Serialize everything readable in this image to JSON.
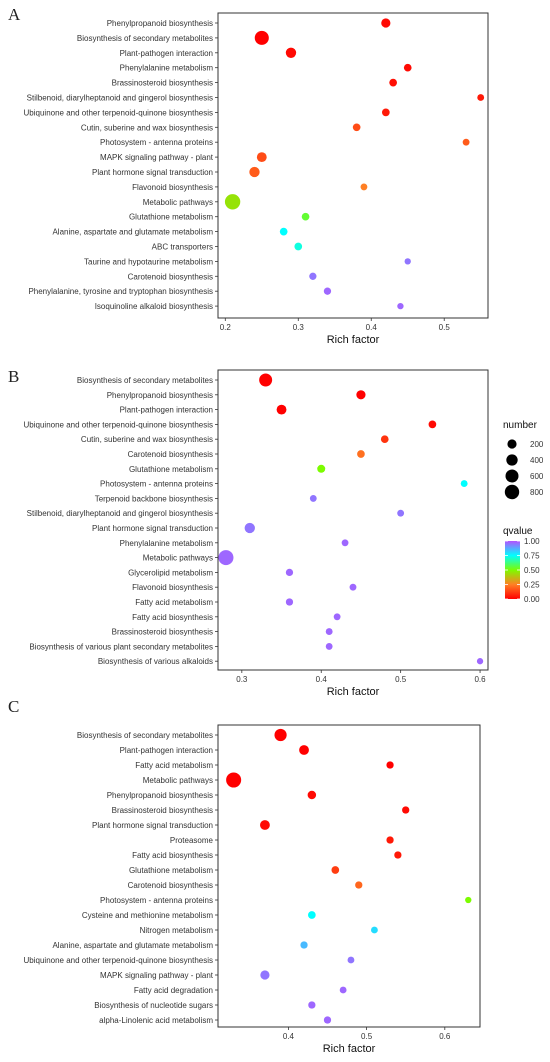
{
  "chart_data": [
    {
      "type": "scatter",
      "panel": "A",
      "xlabel": "Rich factor",
      "xlim": [
        0.19,
        0.56
      ],
      "xticks": [
        0.2,
        0.3,
        0.4,
        0.5
      ],
      "points": [
        {
          "category": "Phenylpropanoid biosynthesis",
          "x": 0.42,
          "number": 200,
          "qvalue": 0.02
        },
        {
          "category": "Biosynthesis of secondary metabolites",
          "x": 0.25,
          "number": 750,
          "qvalue": 0.0
        },
        {
          "category": "Plant-pathogen interaction",
          "x": 0.29,
          "number": 300,
          "qvalue": 0.02
        },
        {
          "category": "Phenylalanine metabolism",
          "x": 0.45,
          "number": 100,
          "qvalue": 0.02
        },
        {
          "category": "Brassinosteroid biosynthesis",
          "x": 0.43,
          "number": 100,
          "qvalue": 0.03
        },
        {
          "category": "Stilbenoid, diarylheptanoid and gingerol biosynthesis",
          "x": 0.55,
          "number": 60,
          "qvalue": 0.05
        },
        {
          "category": "Ubiquinone and other terpenoid-quinone biosynthesis",
          "x": 0.42,
          "number": 100,
          "qvalue": 0.05
        },
        {
          "category": "Cutin, suberine and wax biosynthesis",
          "x": 0.38,
          "number": 100,
          "qvalue": 0.15
        },
        {
          "category": "Photosystem - antenna proteins",
          "x": 0.53,
          "number": 60,
          "qvalue": 0.18
        },
        {
          "category": "MAPK signaling pathway - plant",
          "x": 0.25,
          "number": 250,
          "qvalue": 0.15
        },
        {
          "category": "Plant hormone signal transduction",
          "x": 0.24,
          "number": 300,
          "qvalue": 0.18
        },
        {
          "category": "Flavonoid biosynthesis",
          "x": 0.39,
          "number": 60,
          "qvalue": 0.25
        },
        {
          "category": "Metabolic pathways",
          "x": 0.21,
          "number": 950,
          "qvalue": 0.45
        },
        {
          "category": "Glutathione metabolism",
          "x": 0.31,
          "number": 100,
          "qvalue": 0.55
        },
        {
          "category": "Alanine, aspartate and glutamate metabolism",
          "x": 0.28,
          "number": 100,
          "qvalue": 0.75
        },
        {
          "category": "ABC transporters",
          "x": 0.3,
          "number": 100,
          "qvalue": 0.72
        },
        {
          "category": "Taurine and hypotaurine metabolism",
          "x": 0.45,
          "number": 40,
          "qvalue": 0.95
        },
        {
          "category": "Carotenoid biosynthesis",
          "x": 0.32,
          "number": 80,
          "qvalue": 0.95
        },
        {
          "category": "Phenylalanine, tyrosine and tryptophan biosynthesis",
          "x": 0.34,
          "number": 80,
          "qvalue": 0.97
        },
        {
          "category": "Isoquinoline alkaloid biosynthesis",
          "x": 0.44,
          "number": 40,
          "qvalue": 0.97
        }
      ]
    },
    {
      "type": "scatter",
      "panel": "B",
      "xlabel": "Rich factor",
      "xlim": [
        0.27,
        0.61
      ],
      "xticks": [
        0.3,
        0.4,
        0.5,
        0.6
      ],
      "legend": {
        "size_title": "number",
        "size_values": [
          200,
          400,
          600,
          800
        ],
        "color_title": "qvalue",
        "color_ticks": [
          "1.00",
          "0.75",
          "0.50",
          "0.25",
          "0.00"
        ],
        "color_scale": [
          "#ff0000",
          "#ff7f24",
          "#7cfc00",
          "#00ffff",
          "#b452ff"
        ]
      },
      "points": [
        {
          "category": "Biosynthesis of secondary metabolites",
          "x": 0.33,
          "number": 600,
          "qvalue": 0.0
        },
        {
          "category": "Phenylpropanoid biosynthesis",
          "x": 0.45,
          "number": 200,
          "qvalue": 0.0
        },
        {
          "category": "Plant-pathogen interaction",
          "x": 0.35,
          "number": 250,
          "qvalue": 0.0
        },
        {
          "category": "Ubiquinone and other terpenoid-quinone biosynthesis",
          "x": 0.54,
          "number": 100,
          "qvalue": 0.02
        },
        {
          "category": "Cutin, suberine and wax biosynthesis",
          "x": 0.48,
          "number": 100,
          "qvalue": 0.1
        },
        {
          "category": "Carotenoid biosynthesis",
          "x": 0.45,
          "number": 100,
          "qvalue": 0.22
        },
        {
          "category": "Glutathione metabolism",
          "x": 0.4,
          "number": 120,
          "qvalue": 0.5
        },
        {
          "category": "Photosystem - antenna proteins",
          "x": 0.58,
          "number": 60,
          "qvalue": 0.75
        },
        {
          "category": "Terpenoid backbone biosynthesis",
          "x": 0.39,
          "number": 60,
          "qvalue": 0.95
        },
        {
          "category": "Stilbenoid, diarylheptanoid and gingerol biosynthesis",
          "x": 0.5,
          "number": 60,
          "qvalue": 0.95
        },
        {
          "category": "Plant hormone signal transduction",
          "x": 0.31,
          "number": 300,
          "qvalue": 0.95
        },
        {
          "category": "Phenylalanine metabolism",
          "x": 0.43,
          "number": 60,
          "qvalue": 0.97
        },
        {
          "category": "Metabolic pathways",
          "x": 0.28,
          "number": 900,
          "qvalue": 0.97
        },
        {
          "category": "Glycerolipid metabolism",
          "x": 0.36,
          "number": 80,
          "qvalue": 0.97
        },
        {
          "category": "Flavonoid biosynthesis",
          "x": 0.44,
          "number": 60,
          "qvalue": 0.97
        },
        {
          "category": "Fatty acid metabolism",
          "x": 0.36,
          "number": 80,
          "qvalue": 0.97
        },
        {
          "category": "Fatty acid biosynthesis",
          "x": 0.42,
          "number": 60,
          "qvalue": 0.97
        },
        {
          "category": "Brassinosteroid biosynthesis",
          "x": 0.41,
          "number": 60,
          "qvalue": 0.97
        },
        {
          "category": "Biosynthesis of various plant secondary metabolites",
          "x": 0.41,
          "number": 60,
          "qvalue": 0.97
        },
        {
          "category": "Biosynthesis of various alkaloids",
          "x": 0.6,
          "number": 40,
          "qvalue": 0.97
        }
      ]
    },
    {
      "type": "scatter",
      "panel": "C",
      "xlabel": "Rich factor",
      "xlim": [
        0.31,
        0.645
      ],
      "xticks": [
        0.4,
        0.5,
        0.6
      ],
      "points": [
        {
          "category": "Biosynthesis of secondary metabolites",
          "x": 0.39,
          "number": 500,
          "qvalue": 0.0
        },
        {
          "category": "Plant-pathogen interaction",
          "x": 0.42,
          "number": 250,
          "qvalue": 0.0
        },
        {
          "category": "Fatty acid metabolism",
          "x": 0.53,
          "number": 80,
          "qvalue": 0.0
        },
        {
          "category": "Metabolic pathways",
          "x": 0.33,
          "number": 900,
          "qvalue": 0.0
        },
        {
          "category": "Phenylpropanoid biosynthesis",
          "x": 0.43,
          "number": 150,
          "qvalue": 0.02
        },
        {
          "category": "Brassinosteroid biosynthesis",
          "x": 0.55,
          "number": 80,
          "qvalue": 0.02
        },
        {
          "category": "Plant hormone signal transduction",
          "x": 0.37,
          "number": 250,
          "qvalue": 0.02
        },
        {
          "category": "Proteasome",
          "x": 0.53,
          "number": 80,
          "qvalue": 0.05
        },
        {
          "category": "Fatty acid biosynthesis",
          "x": 0.54,
          "number": 80,
          "qvalue": 0.05
        },
        {
          "category": "Glutathione metabolism",
          "x": 0.46,
          "number": 100,
          "qvalue": 0.12
        },
        {
          "category": "Carotenoid biosynthesis",
          "x": 0.49,
          "number": 80,
          "qvalue": 0.2
        },
        {
          "category": "Photosystem - antenna proteins",
          "x": 0.63,
          "number": 40,
          "qvalue": 0.5
        },
        {
          "category": "Cysteine and methionine metabolism",
          "x": 0.43,
          "number": 100,
          "qvalue": 0.75
        },
        {
          "category": "Nitrogen metabolism",
          "x": 0.51,
          "number": 60,
          "qvalue": 0.8
        },
        {
          "category": "Alanine, aspartate and glutamate metabolism",
          "x": 0.42,
          "number": 80,
          "qvalue": 0.85
        },
        {
          "category": "Ubiquinone and other terpenoid-quinone biosynthesis",
          "x": 0.48,
          "number": 60,
          "qvalue": 0.95
        },
        {
          "category": "MAPK signaling pathway - plant",
          "x": 0.37,
          "number": 200,
          "qvalue": 0.95
        },
        {
          "category": "Fatty acid degradation",
          "x": 0.47,
          "number": 60,
          "qvalue": 0.97
        },
        {
          "category": "Biosynthesis of nucleotide sugars",
          "x": 0.43,
          "number": 80,
          "qvalue": 0.97
        },
        {
          "category": "alpha-Linolenic acid metabolism",
          "x": 0.45,
          "number": 80,
          "qvalue": 0.97
        }
      ]
    }
  ]
}
